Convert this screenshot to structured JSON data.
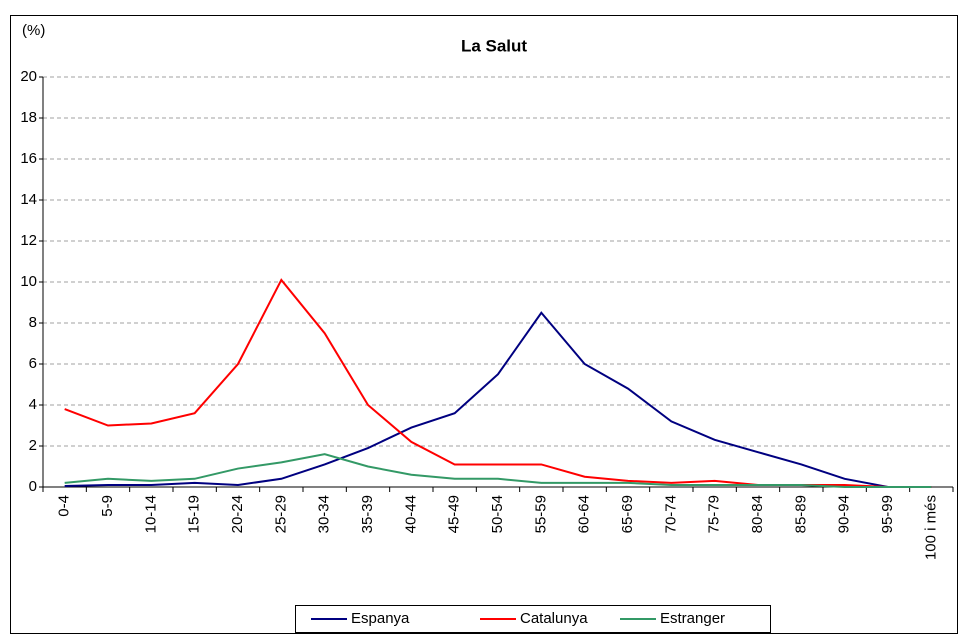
{
  "chart_data": {
    "type": "line",
    "title": "La Salut",
    "y_label": "(%)",
    "categories": [
      "0-4",
      "5-9",
      "10-14",
      "15-19",
      "20-24",
      "25-29",
      "30-34",
      "35-39",
      "40-44",
      "45-49",
      "50-54",
      "55-59",
      "60-64",
      "65-69",
      "70-74",
      "75-79",
      "80-84",
      "85-89",
      "90-94",
      "95-99",
      "100 i més"
    ],
    "series": [
      {
        "name": "Espanya",
        "color": "#000080",
        "values": [
          0.05,
          0.1,
          0.1,
          0.2,
          0.1,
          0.4,
          1.1,
          1.9,
          2.9,
          3.6,
          5.5,
          8.5,
          6.0,
          4.8,
          3.2,
          2.3,
          1.7,
          1.1,
          0.4,
          0,
          0
        ]
      },
      {
        "name": "Catalunya",
        "color": "#ff0000",
        "values": [
          3.8,
          3.0,
          3.1,
          3.6,
          6.0,
          10.1,
          7.5,
          4.0,
          2.2,
          1.1,
          1.1,
          1.1,
          0.5,
          0.3,
          0.2,
          0.3,
          0.1,
          0.1,
          0.1,
          0,
          0
        ]
      },
      {
        "name": "Estranger",
        "color": "#339966",
        "values": [
          0.2,
          0.4,
          0.3,
          0.4,
          0.9,
          1.2,
          1.6,
          1.0,
          0.6,
          0.4,
          0.4,
          0.2,
          0.2,
          0.2,
          0.1,
          0.1,
          0.1,
          0.1,
          0,
          0,
          0
        ]
      }
    ],
    "ylim": [
      0,
      20
    ],
    "yticks": [
      0,
      2,
      4,
      6,
      8,
      10,
      12,
      14,
      16,
      18,
      20
    ],
    "grid": true,
    "legend": "bottom"
  }
}
